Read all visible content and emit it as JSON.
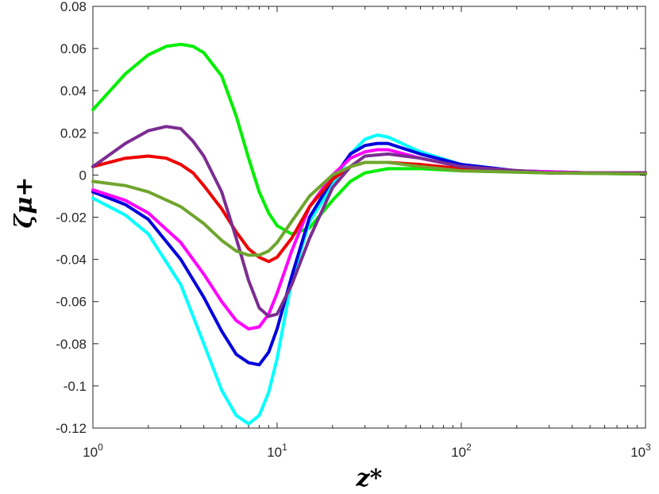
{
  "chart_data": {
    "type": "line",
    "xlabel": "z*",
    "ylabel": "ζμ+",
    "xscale": "log",
    "xlim": [
      1,
      1000
    ],
    "ylim": [
      -0.12,
      0.08
    ],
    "grid": false,
    "legend": "none",
    "xticks": [
      {
        "value": 1,
        "base": "10",
        "exp": "0"
      },
      {
        "value": 10,
        "base": "10",
        "exp": "1"
      },
      {
        "value": 100,
        "base": "10",
        "exp": "2"
      },
      {
        "value": 1000,
        "base": "10",
        "exp": "3"
      }
    ],
    "yticks": [
      {
        "value": 0.08,
        "label": "0.08"
      },
      {
        "value": 0.06,
        "label": "0.06"
      },
      {
        "value": 0.04,
        "label": "0.04"
      },
      {
        "value": 0.02,
        "label": "0.02"
      },
      {
        "value": 0,
        "label": "0"
      },
      {
        "value": -0.02,
        "label": "-0.02"
      },
      {
        "value": -0.04,
        "label": "-0.04"
      },
      {
        "value": -0.06,
        "label": "-0.06"
      },
      {
        "value": -0.08,
        "label": "-0.08"
      },
      {
        "value": -0.1,
        "label": "-0.1"
      },
      {
        "value": -0.12,
        "label": "-0.12"
      }
    ],
    "series": [
      {
        "color": "#00ee00",
        "points": [
          [
            1,
            0.031
          ],
          [
            1.5,
            0.048
          ],
          [
            2,
            0.057
          ],
          [
            2.5,
            0.061
          ],
          [
            3,
            0.062
          ],
          [
            3.5,
            0.061
          ],
          [
            4,
            0.058
          ],
          [
            5,
            0.047
          ],
          [
            6,
            0.028
          ],
          [
            7,
            0.008
          ],
          [
            8,
            -0.008
          ],
          [
            9,
            -0.018
          ],
          [
            10,
            -0.024
          ],
          [
            12,
            -0.028
          ],
          [
            15,
            -0.025
          ],
          [
            20,
            -0.012
          ],
          [
            25,
            -0.003
          ],
          [
            30,
            0.001
          ],
          [
            40,
            0.003
          ],
          [
            60,
            0.003
          ],
          [
            100,
            0.002
          ],
          [
            300,
            0.001
          ],
          [
            1000,
            0.0005
          ]
        ]
      },
      {
        "color": "#00ffff",
        "points": [
          [
            1,
            -0.011
          ],
          [
            1.5,
            -0.019
          ],
          [
            2,
            -0.028
          ],
          [
            3,
            -0.052
          ],
          [
            4,
            -0.08
          ],
          [
            5,
            -0.102
          ],
          [
            6,
            -0.114
          ],
          [
            7,
            -0.118
          ],
          [
            8,
            -0.114
          ],
          [
            9,
            -0.103
          ],
          [
            10,
            -0.087
          ],
          [
            12,
            -0.05
          ],
          [
            15,
            -0.022
          ],
          [
            20,
            -0.005
          ],
          [
            25,
            0.01
          ],
          [
            30,
            0.017
          ],
          [
            35,
            0.019
          ],
          [
            40,
            0.018
          ],
          [
            60,
            0.011
          ],
          [
            100,
            0.005
          ],
          [
            200,
            0.002
          ],
          [
            500,
            0.001
          ],
          [
            1000,
            0.001
          ]
        ]
      },
      {
        "color": "#0000dd",
        "points": [
          [
            1,
            -0.008
          ],
          [
            1.5,
            -0.014
          ],
          [
            2,
            -0.021
          ],
          [
            3,
            -0.04
          ],
          [
            4,
            -0.058
          ],
          [
            5,
            -0.074
          ],
          [
            6,
            -0.085
          ],
          [
            7,
            -0.089
          ],
          [
            8,
            -0.09
          ],
          [
            9,
            -0.084
          ],
          [
            10,
            -0.073
          ],
          [
            12,
            -0.048
          ],
          [
            15,
            -0.02
          ],
          [
            20,
            -0.002
          ],
          [
            25,
            0.01
          ],
          [
            30,
            0.014
          ],
          [
            35,
            0.015
          ],
          [
            40,
            0.015
          ],
          [
            60,
            0.01
          ],
          [
            100,
            0.005
          ],
          [
            200,
            0.002
          ],
          [
            500,
            0.001
          ],
          [
            1000,
            0.001
          ]
        ]
      },
      {
        "color": "#ff00ff",
        "points": [
          [
            1,
            -0.007
          ],
          [
            1.5,
            -0.012
          ],
          [
            2,
            -0.018
          ],
          [
            3,
            -0.032
          ],
          [
            4,
            -0.047
          ],
          [
            5,
            -0.06
          ],
          [
            6,
            -0.069
          ],
          [
            7,
            -0.073
          ],
          [
            8,
            -0.072
          ],
          [
            9,
            -0.066
          ],
          [
            10,
            -0.056
          ],
          [
            12,
            -0.036
          ],
          [
            15,
            -0.015
          ],
          [
            20,
            0
          ],
          [
            25,
            0.008
          ],
          [
            30,
            0.011
          ],
          [
            35,
            0.012
          ],
          [
            40,
            0.012
          ],
          [
            60,
            0.008
          ],
          [
            100,
            0.004
          ],
          [
            200,
            0.002
          ],
          [
            500,
            0.001
          ],
          [
            1000,
            0.001
          ]
        ]
      },
      {
        "color": "#ee0000",
        "points": [
          [
            1,
            0.004
          ],
          [
            1.5,
            0.008
          ],
          [
            2,
            0.009
          ],
          [
            2.5,
            0.008
          ],
          [
            3,
            0.005
          ],
          [
            3.5,
            0.001
          ],
          [
            4,
            -0.005
          ],
          [
            5,
            -0.016
          ],
          [
            6,
            -0.027
          ],
          [
            7,
            -0.035
          ],
          [
            8,
            -0.039
          ],
          [
            9,
            -0.041
          ],
          [
            10,
            -0.039
          ],
          [
            12,
            -0.03
          ],
          [
            15,
            -0.015
          ],
          [
            20,
            -0.002
          ],
          [
            25,
            0.004
          ],
          [
            30,
            0.006
          ],
          [
            40,
            0.006
          ],
          [
            60,
            0.005
          ],
          [
            100,
            0.003
          ],
          [
            300,
            0.001
          ],
          [
            1000,
            0.001
          ]
        ]
      },
      {
        "color": "#7b2d90",
        "points": [
          [
            1,
            0.004
          ],
          [
            1.5,
            0.015
          ],
          [
            2,
            0.021
          ],
          [
            2.5,
            0.023
          ],
          [
            3,
            0.022
          ],
          [
            3.5,
            0.016
          ],
          [
            4,
            0.009
          ],
          [
            5,
            -0.008
          ],
          [
            6,
            -0.03
          ],
          [
            7,
            -0.05
          ],
          [
            8,
            -0.063
          ],
          [
            9,
            -0.067
          ],
          [
            10,
            -0.066
          ],
          [
            12,
            -0.052
          ],
          [
            15,
            -0.03
          ],
          [
            20,
            -0.006
          ],
          [
            25,
            0.004
          ],
          [
            30,
            0.009
          ],
          [
            40,
            0.01
          ],
          [
            60,
            0.008
          ],
          [
            100,
            0.004
          ],
          [
            300,
            0.001
          ],
          [
            1000,
            0.001
          ]
        ]
      },
      {
        "color": "#6fa52e",
        "points": [
          [
            1,
            -0.003
          ],
          [
            1.5,
            -0.005
          ],
          [
            2,
            -0.008
          ],
          [
            3,
            -0.015
          ],
          [
            4,
            -0.023
          ],
          [
            5,
            -0.031
          ],
          [
            6,
            -0.036
          ],
          [
            7,
            -0.038
          ],
          [
            8,
            -0.038
          ],
          [
            9,
            -0.036
          ],
          [
            10,
            -0.032
          ],
          [
            12,
            -0.022
          ],
          [
            15,
            -0.01
          ],
          [
            20,
            0
          ],
          [
            25,
            0.004
          ],
          [
            30,
            0.006
          ],
          [
            40,
            0.006
          ],
          [
            60,
            0.004
          ],
          [
            100,
            0.002
          ],
          [
            300,
            0.001
          ],
          [
            1000,
            0.0005
          ]
        ]
      }
    ]
  }
}
